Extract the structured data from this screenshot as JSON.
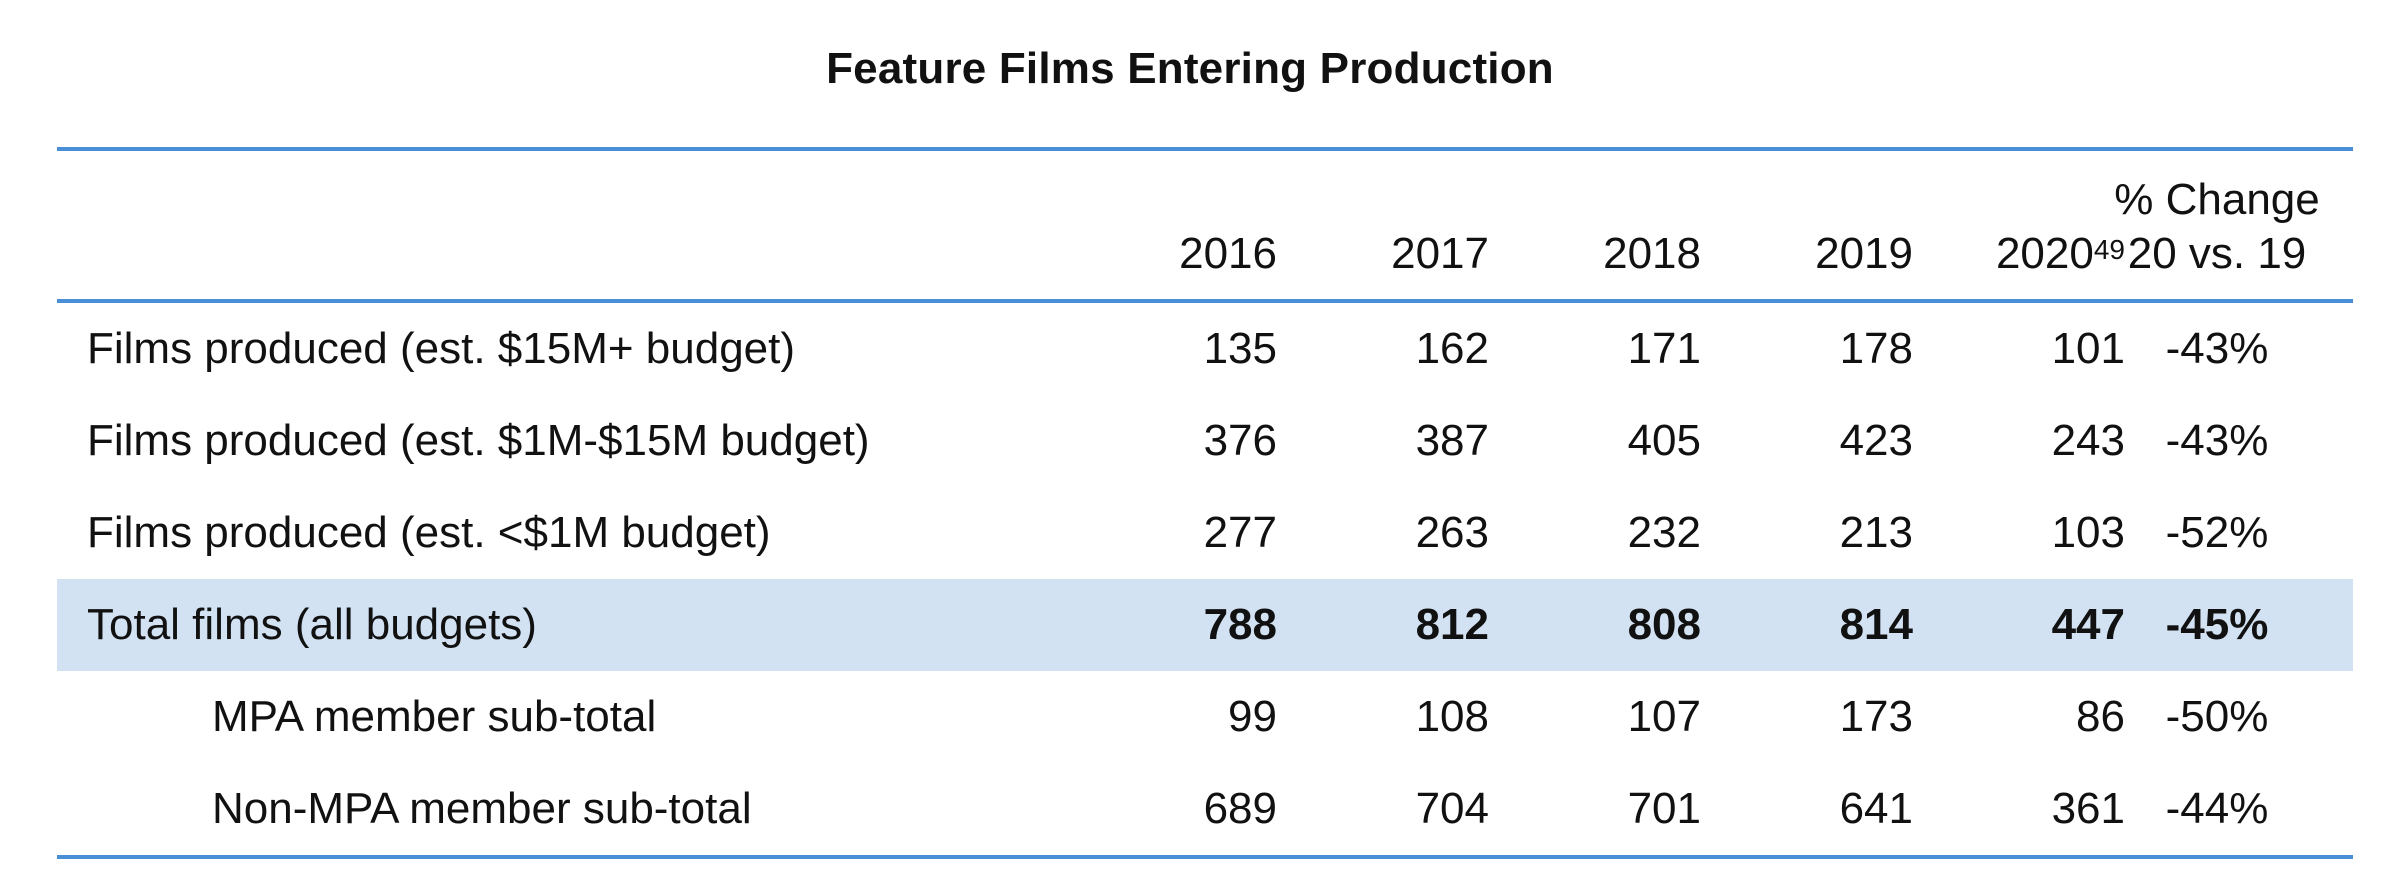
{
  "chart_data": {
    "type": "table",
    "title": "Feature Films Entering Production",
    "columns": [
      {
        "label": "2016",
        "sup": ""
      },
      {
        "label": "2017",
        "sup": ""
      },
      {
        "label": "2018",
        "sup": ""
      },
      {
        "label": "2019",
        "sup": ""
      },
      {
        "label": "2020",
        "sup": "49"
      },
      {
        "label_line1": "% Change",
        "label_line2": "20 vs. 19"
      }
    ],
    "rows": [
      {
        "label": "Films produced (est. $15M+ budget)",
        "values": [
          "135",
          "162",
          "171",
          "178",
          "101"
        ],
        "change": "-43%",
        "style": "normal"
      },
      {
        "label": "Films produced (est. $1M-$15M budget)",
        "values": [
          "376",
          "387",
          "405",
          "423",
          "243"
        ],
        "change": "-43%",
        "style": "normal"
      },
      {
        "label": "Films produced (est. <$1M budget)",
        "values": [
          "277",
          "263",
          "232",
          "213",
          "103"
        ],
        "change": "-52%",
        "style": "normal"
      },
      {
        "label": "Total films (all budgets)",
        "values": [
          "788",
          "812",
          "808",
          "814",
          "447"
        ],
        "change": "-45%",
        "style": "total"
      },
      {
        "label": "MPA member sub-total",
        "values": [
          "99",
          "108",
          "107",
          "173",
          "86"
        ],
        "change": "-50%",
        "style": "indent"
      },
      {
        "label": "Non-MPA member sub-total",
        "values": [
          "689",
          "704",
          "701",
          "641",
          "361"
        ],
        "change": "-44%",
        "style": "indent"
      }
    ],
    "colors": {
      "rule": "#4a8fd6",
      "total_row_bg": "#d3e2f3"
    }
  }
}
